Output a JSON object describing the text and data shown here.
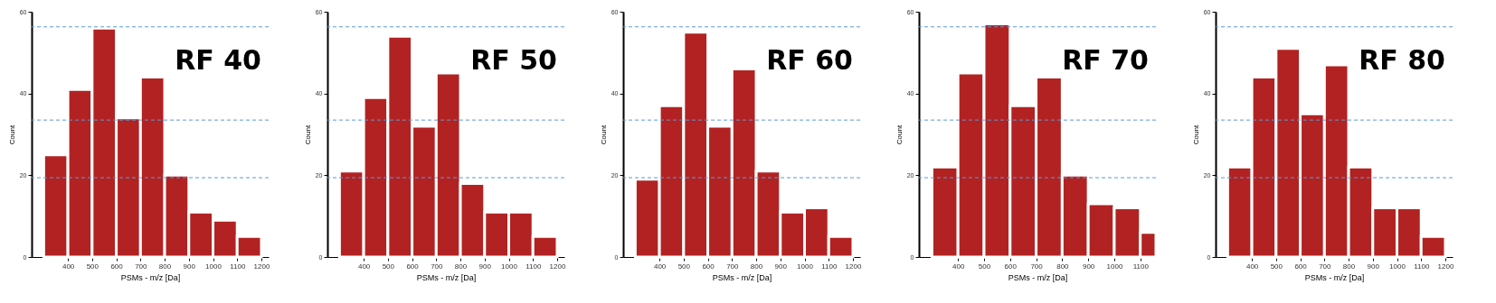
{
  "chart_data": [
    {
      "type": "histogram",
      "annotations": [
        "RF 40"
      ],
      "xlabel": "PSMs - m/z [Da]",
      "ylabel": "Count",
      "color": "#b22222",
      "bins": [
        300,
        400,
        500,
        600,
        700,
        800,
        900,
        1000,
        1100,
        1200
      ],
      "values": [
        25,
        41,
        56,
        34,
        44,
        20,
        11,
        9,
        5
      ],
      "xlim": [
        250,
        1230
      ],
      "xticks": [
        400,
        500,
        600,
        700,
        800,
        900,
        1000,
        1100,
        1200
      ],
      "ylim": [
        0,
        60
      ],
      "yticks": [
        0,
        20,
        40,
        60
      ],
      "grid": false,
      "ref_lines": [
        {
          "axis": "y",
          "value": 56.3,
          "color": "#5b9bd5",
          "line_style": "dashed"
        },
        {
          "axis": "y",
          "value": 33.5,
          "color": "#5b9bd5",
          "line_style": "dashed"
        },
        {
          "axis": "y",
          "value": 19.4,
          "color": "#5b9bd5",
          "line_style": "dashed"
        }
      ]
    },
    {
      "type": "histogram",
      "annotations": [
        "RF 50"
      ],
      "xlabel": "PSMs - m/z [Da]",
      "ylabel": "Count",
      "color": "#b22222",
      "bins": [
        300,
        400,
        500,
        600,
        700,
        800,
        900,
        1000,
        1100,
        1200
      ],
      "values": [
        21,
        39,
        54,
        32,
        45,
        18,
        11,
        11,
        5
      ],
      "xlim": [
        250,
        1230
      ],
      "xticks": [
        400,
        500,
        600,
        700,
        800,
        900,
        1000,
        1100,
        1200
      ],
      "ylim": [
        0,
        60
      ],
      "yticks": [
        0,
        20,
        40,
        60
      ],
      "grid": false,
      "ref_lines": [
        {
          "axis": "y",
          "value": 56.3,
          "color": "#5b9bd5",
          "line_style": "dashed"
        },
        {
          "axis": "y",
          "value": 33.5,
          "color": "#5b9bd5",
          "line_style": "dashed"
        },
        {
          "axis": "y",
          "value": 19.4,
          "color": "#5b9bd5",
          "line_style": "dashed"
        }
      ]
    },
    {
      "type": "histogram",
      "annotations": [
        "RF 60"
      ],
      "xlabel": "PSMs - m/z [Da]",
      "ylabel": "Count",
      "color": "#b22222",
      "bins": [
        300,
        400,
        500,
        600,
        700,
        800,
        900,
        1000,
        1100,
        1200
      ],
      "values": [
        19,
        37,
        55,
        32,
        46,
        21,
        11,
        12,
        5
      ],
      "xlim": [
        250,
        1230
      ],
      "xticks": [
        400,
        500,
        600,
        700,
        800,
        900,
        1000,
        1100,
        1200
      ],
      "ylim": [
        0,
        60
      ],
      "yticks": [
        0,
        20,
        40,
        60
      ],
      "grid": false,
      "ref_lines": [
        {
          "axis": "y",
          "value": 56.3,
          "color": "#5b9bd5",
          "line_style": "dashed"
        },
        {
          "axis": "y",
          "value": 33.5,
          "color": "#5b9bd5",
          "line_style": "dashed"
        },
        {
          "axis": "y",
          "value": 19.4,
          "color": "#5b9bd5",
          "line_style": "dashed"
        }
      ]
    },
    {
      "type": "histogram",
      "annotations": [
        "RF 70"
      ],
      "xlabel": "PSMs - m/z [Da]",
      "ylabel": "Count",
      "color": "#b22222",
      "bins": [
        300,
        400,
        500,
        600,
        700,
        800,
        900,
        1000,
        1100,
        1160
      ],
      "values": [
        22,
        45,
        57,
        37,
        44,
        20,
        13,
        12,
        6
      ],
      "xlim": [
        250,
        1160
      ],
      "xticks": [
        400,
        500,
        600,
        700,
        800,
        900,
        1000,
        1100
      ],
      "ylim": [
        0,
        60
      ],
      "yticks": [
        0,
        20,
        40,
        60
      ],
      "grid": false,
      "ref_lines": [
        {
          "axis": "y",
          "value": 56.3,
          "color": "#5b9bd5",
          "line_style": "dashed"
        },
        {
          "axis": "y",
          "value": 33.5,
          "color": "#5b9bd5",
          "line_style": "dashed"
        },
        {
          "axis": "y",
          "value": 19.4,
          "color": "#5b9bd5",
          "line_style": "dashed"
        }
      ]
    },
    {
      "type": "histogram",
      "annotations": [
        "RF 80"
      ],
      "xlabel": "PSMs - m/z [Da]",
      "ylabel": "Count",
      "color": "#b22222",
      "bins": [
        300,
        400,
        500,
        600,
        700,
        800,
        900,
        1000,
        1100,
        1200
      ],
      "values": [
        22,
        44,
        51,
        35,
        47,
        22,
        12,
        12,
        5
      ],
      "xlim": [
        250,
        1230
      ],
      "xticks": [
        400,
        500,
        600,
        700,
        800,
        900,
        1000,
        1100,
        1200
      ],
      "ylim": [
        0,
        60
      ],
      "yticks": [
        0,
        20,
        40,
        60
      ],
      "grid": false,
      "ref_lines": [
        {
          "axis": "y",
          "value": 56.3,
          "color": "#5b9bd5",
          "line_style": "dashed"
        },
        {
          "axis": "y",
          "value": 33.5,
          "color": "#5b9bd5",
          "line_style": "dashed"
        },
        {
          "axis": "y",
          "value": 19.4,
          "color": "#5b9bd5",
          "line_style": "dashed"
        }
      ]
    }
  ]
}
